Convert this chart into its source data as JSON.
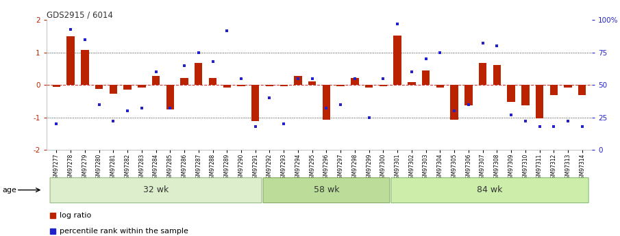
{
  "title": "GDS2915 / 6014",
  "samples": [
    "GSM97277",
    "GSM97278",
    "GSM97279",
    "GSM97280",
    "GSM97281",
    "GSM97282",
    "GSM97283",
    "GSM97284",
    "GSM97285",
    "GSM97286",
    "GSM97287",
    "GSM97288",
    "GSM97289",
    "GSM97290",
    "GSM97291",
    "GSM97292",
    "GSM97293",
    "GSM97294",
    "GSM97295",
    "GSM97296",
    "GSM97297",
    "GSM97298",
    "GSM97299",
    "GSM97300",
    "GSM97301",
    "GSM97302",
    "GSM97303",
    "GSM97304",
    "GSM97305",
    "GSM97306",
    "GSM97307",
    "GSM97308",
    "GSM97309",
    "GSM97310",
    "GSM97311",
    "GSM97312",
    "GSM97313",
    "GSM97314"
  ],
  "log_ratio": [
    -0.05,
    1.5,
    1.08,
    -0.12,
    -0.28,
    -0.15,
    -0.08,
    0.28,
    -0.75,
    0.22,
    0.68,
    0.22,
    -0.07,
    -0.04,
    -1.12,
    -0.03,
    -0.03,
    0.28,
    0.12,
    -1.08,
    -0.03,
    0.22,
    -0.07,
    -0.03,
    1.52,
    0.08,
    0.45,
    -0.07,
    -1.08,
    -0.62,
    0.68,
    0.62,
    -0.52,
    -0.62,
    -1.02,
    -0.32,
    -0.07,
    -0.32
  ],
  "percentile_rank": [
    20,
    93,
    85,
    35,
    22,
    30,
    32,
    60,
    32,
    65,
    75,
    68,
    92,
    55,
    18,
    40,
    20,
    55,
    55,
    32,
    35,
    55,
    25,
    55,
    97,
    60,
    70,
    75,
    30,
    35,
    82,
    80,
    27,
    22,
    18,
    18,
    22,
    18
  ],
  "group_boundaries": [
    0,
    15,
    24,
    38
  ],
  "group_labels": [
    "32 wk",
    "58 wk",
    "84 wk"
  ],
  "ylim": [
    -2,
    2
  ],
  "yticks_left": [
    -2,
    -1,
    0,
    1,
    2
  ],
  "bar_color": "#bb2200",
  "dot_color": "#2222cc",
  "hline_color": "#cc3333",
  "dotted_color": "#333333",
  "group_fill_colors": [
    "#ddeecc",
    "#bbdd99",
    "#cceeaa"
  ],
  "group_border_colors": [
    "#99bb88",
    "#88aa66",
    "#88bb77"
  ],
  "age_label": "age",
  "legend_bar": "log ratio",
  "legend_dot": "percentile rank within the sample",
  "bar_width": 0.55,
  "bg_color": "#ffffff"
}
